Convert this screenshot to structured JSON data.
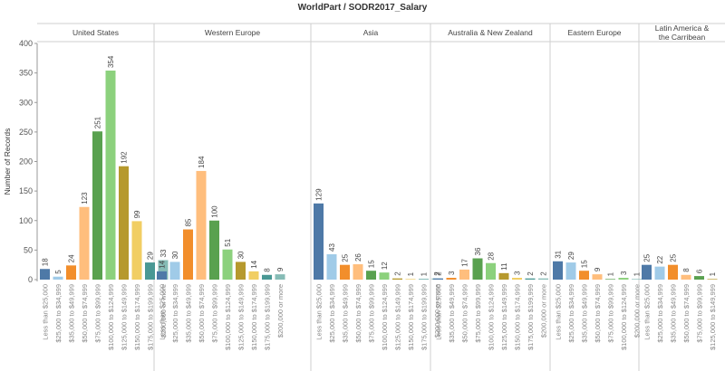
{
  "chart_data": {
    "type": "bar",
    "title": "WorldPart / SODR2017_Salary",
    "ylabel": "Number of Records",
    "ylim": [
      0,
      400
    ],
    "yticks": [
      0,
      50,
      100,
      150,
      200,
      250,
      300,
      350,
      400
    ],
    "grid": false,
    "legend": "none",
    "panels": [
      {
        "name": "United States",
        "categories": [
          "Less than $25,000",
          "$25,000 to $34,999",
          "$35,000 to $49,999",
          "$50,000 to $74,999",
          "$75,000 to $99,999",
          "$100,000 to $124,999",
          "$125,000 to $149,999",
          "$150,000 to $174,999",
          "$175,000 to $199,999",
          "$200,000 or more"
        ],
        "values": [
          18,
          5,
          24,
          123,
          251,
          354,
          192,
          99,
          29,
          33
        ]
      },
      {
        "name": "Western Europe",
        "categories": [
          "Less than $25,000",
          "$25,000 to $34,999",
          "$35,000 to $49,999",
          "$50,000 to $74,999",
          "$75,000 to $99,999",
          "$100,000 to $124,999",
          "$125,000 to $149,999",
          "$150,000 to $174,999",
          "$175,000 to $199,999",
          "$200,000 or more"
        ],
        "values": [
          14,
          30,
          85,
          184,
          100,
          51,
          30,
          14,
          8,
          9
        ]
      },
      {
        "name": "Asia",
        "categories": [
          "Less than $25,000",
          "$25,000 to $34,999",
          "$35,000 to $49,999",
          "$50,000 to $74,999",
          "$75,000 to $99,999",
          "$100,000 to $124,999",
          "$125,000 to $149,999",
          "$150,000 to $174,999",
          "$175,000 to $199,999",
          "$200,000 or more"
        ],
        "values": [
          129,
          43,
          25,
          26,
          15,
          12,
          2,
          1,
          1,
          2
        ]
      },
      {
        "name": "Australia & New Zealand",
        "categories": [
          "Less than $25,000",
          "$35,000 to $49,999",
          "$50,000 to $74,999",
          "$75,000 to $99,999",
          "$100,000 to $124,999",
          "$125,000 to $149,999",
          "$150,000 to $174,999",
          "$175,000 to $199,999",
          "$200,000 or more"
        ],
        "values": [
          2,
          3,
          17,
          36,
          28,
          11,
          3,
          2,
          2
        ]
      },
      {
        "name": "Eastern Europe",
        "categories": [
          "Less than $25,000",
          "$25,000 to $34,999",
          "$35,000 to $49,999",
          "$50,000 to $74,999",
          "$75,000 to $99,999",
          "$100,000 to $124,999",
          "$200,000 or more"
        ],
        "values": [
          31,
          29,
          15,
          9,
          1,
          3,
          1
        ]
      },
      {
        "name": "Latin America & the Carribean",
        "categories": [
          "Less than $25,000",
          "$25,000 to $34,999",
          "$35,000 to $49,999",
          "$50,000 to $74,999",
          "$75,000 to $99,999",
          "$125,000 to $149,999"
        ],
        "values": [
          25,
          22,
          25,
          8,
          6,
          1
        ]
      }
    ],
    "category_colors": {
      "Less than $25,000": "#4e79a7",
      "$25,000 to $34,999": "#a0cbe8",
      "$35,000 to $49,999": "#f28e2b",
      "$50,000 to $74,999": "#ffbe7d",
      "$75,000 to $99,999": "#59a14f",
      "$100,000 to $124,999": "#8cd17d",
      "$125,000 to $149,999": "#b6992d",
      "$150,000 to $174,999": "#f1ce63",
      "$175,000 to $199,999": "#499894",
      "$200,000 or more": "#86bcb6"
    }
  }
}
